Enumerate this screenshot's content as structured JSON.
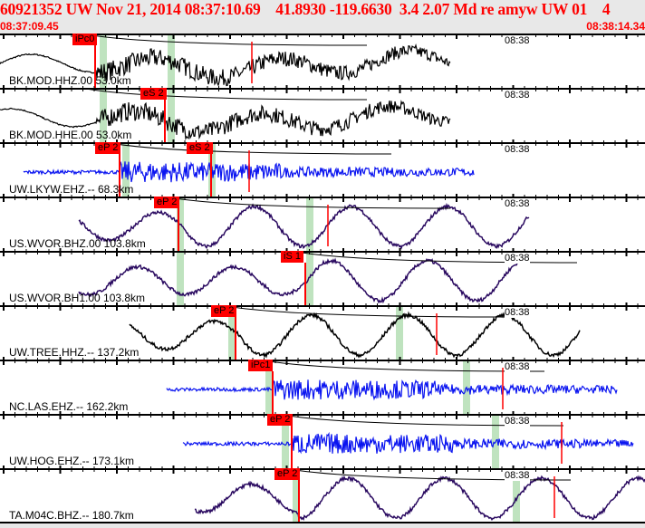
{
  "header": {
    "title": "60921352 UW Nov 21, 2014 08:37:10.69    41.8930 -119.6630  3.4 2.07 Md re amyw UW 01    4",
    "start_time": "08:37:09.45",
    "end_time": "08:38:14.34"
  },
  "traces": [
    {
      "station": "BK.MOD.HHZ.00 53.0km",
      "picks": [
        "iPc0"
      ],
      "time_label": "08:38",
      "color": "#000000"
    },
    {
      "station": "BK.MOD.HHE.00 53.0km",
      "picks": [
        "eS 2"
      ],
      "time_label": "08:38",
      "color": "#000000"
    },
    {
      "station": "UW.LKYW.EHZ.-- 68.3km",
      "picks": [
        "eP 2",
        "eS 2"
      ],
      "time_label": "08:38",
      "color": "#0a14f0"
    },
    {
      "station": "US.WVOR.BHZ.00 103.8km",
      "picks": [
        "eP 2"
      ],
      "time_label": "08:38",
      "color": "#2a0a60"
    },
    {
      "station": "US.WVOR.BH1.00 103.8km",
      "picks": [
        "iS 1"
      ],
      "time_label": "08:38",
      "color": "#2a0a60"
    },
    {
      "station": "UW.TREE.HHZ.-- 137.2km",
      "picks": [
        "eP 2"
      ],
      "time_label": "08:38",
      "color": "#000000"
    },
    {
      "station": "NC.LAS.EHZ.-- 162.2km",
      "picks": [
        "iPc1"
      ],
      "time_label": "08:38",
      "color": "#0a14f0"
    },
    {
      "station": "UW.HOG.EHZ.-- 173.1km",
      "picks": [
        "eP 2"
      ],
      "time_label": "08:38",
      "color": "#0a14f0"
    },
    {
      "station": "TA.M04C.BHZ.-- 180.7km",
      "picks": [
        "eP 2"
      ],
      "time_label": "08:38",
      "color": "#2a0a60"
    }
  ],
  "colors": {
    "pick": "#ff0000",
    "window": "#bfe3bf"
  }
}
